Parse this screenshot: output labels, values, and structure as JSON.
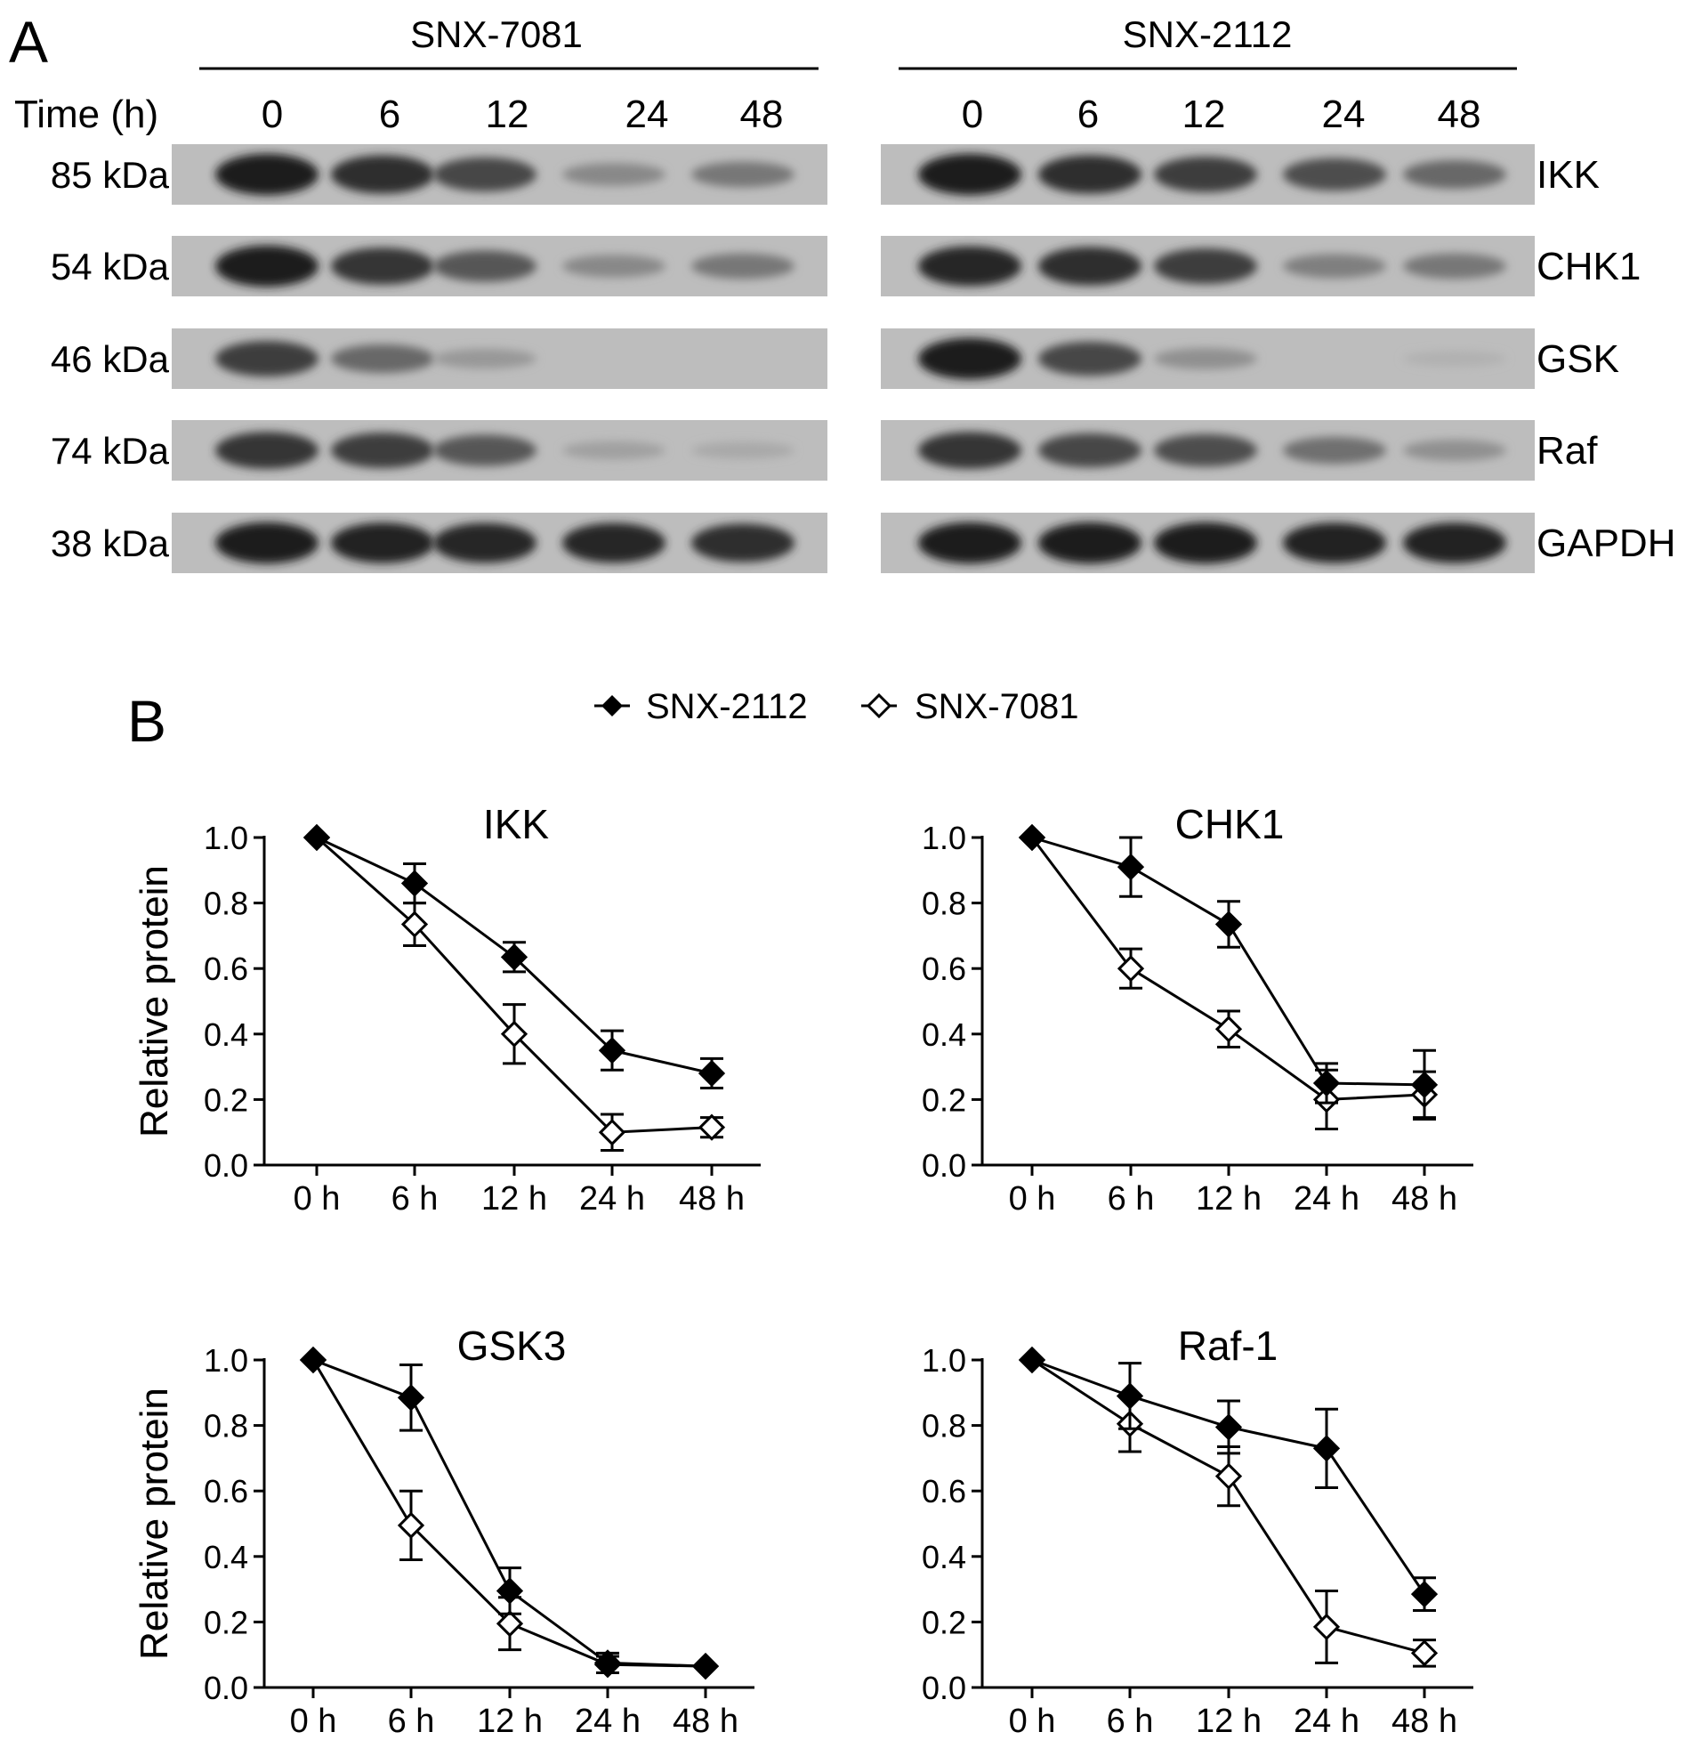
{
  "panel_a": {
    "letter": "A",
    "time_label": "Time (h)",
    "groups": [
      {
        "name": "SNX-7081",
        "times": [
          "0",
          "6",
          "12",
          "24",
          "48"
        ]
      },
      {
        "name": "SNX-2112",
        "times": [
          "0",
          "6",
          "12",
          "24",
          "48"
        ]
      }
    ],
    "rows": [
      {
        "mw": "85 kDa",
        "protein": "IKK",
        "lanes": [
          [
            0.95,
            0.85,
            0.7,
            0.3,
            0.4
          ],
          [
            0.95,
            0.85,
            0.75,
            0.65,
            0.5
          ]
        ]
      },
      {
        "mw": "54 kDa",
        "protein": "CHK1",
        "lanes": [
          [
            0.95,
            0.8,
            0.6,
            0.3,
            0.4
          ],
          [
            0.9,
            0.85,
            0.75,
            0.35,
            0.4
          ]
        ]
      },
      {
        "mw": "46 kDa",
        "protein": "GSK",
        "lanes": [
          [
            0.75,
            0.5,
            0.2,
            0.0,
            0.0
          ],
          [
            0.95,
            0.7,
            0.25,
            0.0,
            0.05
          ]
        ]
      },
      {
        "mw": "74 kDa",
        "protein": "Raf",
        "lanes": [
          [
            0.8,
            0.75,
            0.6,
            0.15,
            0.1
          ],
          [
            0.8,
            0.7,
            0.65,
            0.45,
            0.25
          ]
        ]
      },
      {
        "mw": "38 kDa",
        "protein": "GAPDH",
        "lanes": [
          [
            0.95,
            0.92,
            0.9,
            0.9,
            0.85
          ],
          [
            0.95,
            0.95,
            0.95,
            0.92,
            0.92
          ]
        ]
      }
    ]
  },
  "panel_b": {
    "letter": "B",
    "legend": [
      {
        "name": "SNX-2112",
        "marker": "filled-diamond"
      },
      {
        "name": "SNX-7081",
        "marker": "open-diamond"
      }
    ]
  },
  "chart_data": [
    {
      "type": "line",
      "title": "IKK",
      "ylabel": "Relative protein",
      "categories": [
        "0 h",
        "6 h",
        "12 h",
        "24 h",
        "48 h"
      ],
      "ylim": [
        0,
        1.0
      ],
      "yticks": [
        "0.0",
        "0.2",
        "0.4",
        "0.6",
        "0.8",
        "1.0"
      ],
      "series": [
        {
          "name": "SNX-2112",
          "values": [
            1.0,
            0.86,
            0.635,
            0.35,
            0.28
          ],
          "errors": [
            0,
            0.06,
            0.045,
            0.06,
            0.045
          ]
        },
        {
          "name": "SNX-7081",
          "values": [
            1.0,
            0.735,
            0.4,
            0.1,
            0.115
          ],
          "errors": [
            0,
            0.065,
            0.09,
            0.055,
            0.03
          ]
        }
      ]
    },
    {
      "type": "line",
      "title": "CHK1",
      "ylabel": "Relative protein",
      "categories": [
        "0 h",
        "6 h",
        "12 h",
        "24 h",
        "48 h"
      ],
      "ylim": [
        0,
        1.0
      ],
      "yticks": [
        "0.0",
        "0.2",
        "0.4",
        "0.6",
        "0.8",
        "1.0"
      ],
      "series": [
        {
          "name": "SNX-2112",
          "values": [
            1.0,
            0.91,
            0.735,
            0.25,
            0.245
          ],
          "errors": [
            0,
            0.09,
            0.07,
            0.06,
            0.105
          ]
        },
        {
          "name": "SNX-7081",
          "values": [
            1.0,
            0.6,
            0.415,
            0.2,
            0.215
          ],
          "errors": [
            0,
            0.06,
            0.055,
            0.09,
            0.07
          ]
        }
      ]
    },
    {
      "type": "line",
      "title": "GSK3",
      "ylabel": "Relative protein",
      "categories": [
        "0 h",
        "6 h",
        "12 h",
        "24 h",
        "48 h"
      ],
      "ylim": [
        0,
        1.0
      ],
      "yticks": [
        "0.0",
        "0.2",
        "0.4",
        "0.6",
        "0.8",
        "1.0"
      ],
      "series": [
        {
          "name": "SNX-2112",
          "values": [
            1.0,
            0.885,
            0.295,
            0.075,
            0.065
          ],
          "errors": [
            0,
            0.1,
            0.07,
            0.03,
            0.0
          ]
        },
        {
          "name": "SNX-7081",
          "values": [
            1.0,
            0.495,
            0.195,
            0.07,
            0.065
          ],
          "errors": [
            0,
            0.105,
            0.08,
            0.025,
            0.0
          ]
        }
      ]
    },
    {
      "type": "line",
      "title": "Raf-1",
      "ylabel": "Relative protein",
      "categories": [
        "0 h",
        "6 h",
        "12 h",
        "24 h",
        "48 h"
      ],
      "ylim": [
        0,
        1.0
      ],
      "yticks": [
        "0.0",
        "0.2",
        "0.4",
        "0.6",
        "0.8",
        "1.0"
      ],
      "series": [
        {
          "name": "SNX-2112",
          "values": [
            1.0,
            0.89,
            0.795,
            0.73,
            0.285
          ],
          "errors": [
            0,
            0.1,
            0.08,
            0.12,
            0.05
          ]
        },
        {
          "name": "SNX-7081",
          "values": [
            1.0,
            0.805,
            0.645,
            0.185,
            0.105
          ],
          "errors": [
            0,
            0.085,
            0.09,
            0.11,
            0.04
          ]
        }
      ]
    }
  ]
}
